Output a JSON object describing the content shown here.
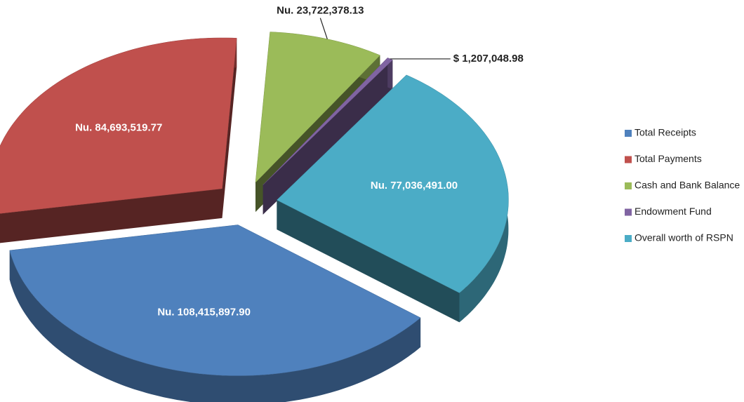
{
  "chart_data": {
    "type": "pie",
    "categories": [
      "Total Receipts",
      "Total Payments",
      "Cash and Bank Balance",
      "Endowment Fund",
      "Overall worth of RSPN"
    ],
    "values": [
      108415897.9,
      84693519.77,
      23722378.13,
      1207048.98,
      77036491.0
    ],
    "value_labels": [
      "Nu. 108,415,897.90",
      "Nu. 84,693,519.77",
      "Nu. 23,722,378.13",
      "$ 1,207,048.98",
      "Nu. 77,036,491.00"
    ],
    "colors": [
      "#4f81bd",
      "#c0504d",
      "#9bbb59",
      "#8064a2",
      "#4bacc6"
    ],
    "legend": "right"
  }
}
